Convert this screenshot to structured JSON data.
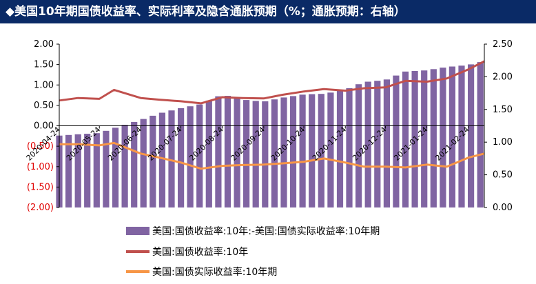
{
  "header": {
    "title": "◆美国10年期国债收益率、实际利率及隐含通胀预期（%；通胀预期：右轴）"
  },
  "colors": {
    "header_bg": "#0a2a66",
    "bar": "#8064a2",
    "nominal": "#c0504d",
    "real": "#f79646",
    "negative_tick": "#e00000"
  },
  "chart_data": {
    "type": "bar+line",
    "left_axis": {
      "ylim": [
        -2.0,
        2.0
      ],
      "ticks": [
        "2.00",
        "1.50",
        "1.00",
        "0.50",
        "0.00",
        "(0.50)",
        "(1.00)",
        "(1.50)",
        "(2.00)"
      ]
    },
    "right_axis": {
      "ylim": [
        0.0,
        2.5
      ],
      "ticks": [
        "2.50",
        "2.00",
        "1.50",
        "1.00",
        "0.50",
        "0.00"
      ]
    },
    "x_ticks": [
      "2020-04-24",
      "2020-05-24",
      "2020-06-24",
      "2020-07-24",
      "2020-08-24",
      "2020-09-24",
      "2020-10-24",
      "2020-11-24",
      "2020-12-24",
      "2021-01-24",
      "2021-02-24"
    ],
    "x_range": [
      "2020-04-24",
      "2021-03-08"
    ],
    "legend": [
      {
        "label": "美国:国债收益率:10年:-美国:国债实际收益率:10年期",
        "kind": "bar"
      },
      {
        "label": "美国:国债收益率:10年",
        "kind": "line"
      },
      {
        "label": "美国:国债实际收益率:10年期",
        "kind": "line"
      }
    ],
    "series": [
      {
        "name": "美国:国债收益率:10年:-美国:国债实际收益率:10年期",
        "axis": "right",
        "kind": "bar",
        "points": [
          [
            "2020-04-24",
            1.1
          ],
          [
            "2020-05-08",
            1.12
          ],
          [
            "2020-05-24",
            1.14
          ],
          [
            "2020-06-08",
            1.24
          ],
          [
            "2020-06-24",
            1.34
          ],
          [
            "2020-07-08",
            1.44
          ],
          [
            "2020-07-24",
            1.52
          ],
          [
            "2020-08-08",
            1.58
          ],
          [
            "2020-08-24",
            1.73
          ],
          [
            "2020-09-08",
            1.65
          ],
          [
            "2020-09-24",
            1.62
          ],
          [
            "2020-10-08",
            1.68
          ],
          [
            "2020-10-24",
            1.73
          ],
          [
            "2020-11-08",
            1.74
          ],
          [
            "2020-11-24",
            1.8
          ],
          [
            "2020-12-08",
            1.92
          ],
          [
            "2020-12-24",
            1.95
          ],
          [
            "2021-01-08",
            2.08
          ],
          [
            "2021-01-24",
            2.1
          ],
          [
            "2021-02-08",
            2.15
          ],
          [
            "2021-02-24",
            2.18
          ],
          [
            "2021-03-08",
            2.24
          ]
        ]
      },
      {
        "name": "美国:国债收益率:10年",
        "axis": "left",
        "kind": "line",
        "points": [
          [
            "2020-04-24",
            0.62
          ],
          [
            "2020-05-08",
            0.68
          ],
          [
            "2020-05-24",
            0.66
          ],
          [
            "2020-06-04",
            0.88
          ],
          [
            "2020-06-24",
            0.68
          ],
          [
            "2020-07-08",
            0.64
          ],
          [
            "2020-07-24",
            0.6
          ],
          [
            "2020-08-08",
            0.55
          ],
          [
            "2020-08-24",
            0.7
          ],
          [
            "2020-09-08",
            0.68
          ],
          [
            "2020-09-24",
            0.67
          ],
          [
            "2020-10-08",
            0.76
          ],
          [
            "2020-10-24",
            0.84
          ],
          [
            "2020-11-08",
            0.9
          ],
          [
            "2020-11-24",
            0.86
          ],
          [
            "2020-12-08",
            0.92
          ],
          [
            "2020-12-24",
            0.94
          ],
          [
            "2021-01-08",
            1.1
          ],
          [
            "2021-01-24",
            1.08
          ],
          [
            "2021-02-08",
            1.16
          ],
          [
            "2021-02-24",
            1.38
          ],
          [
            "2021-03-08",
            1.58
          ]
        ]
      },
      {
        "name": "美国:国债实际收益率:10年期",
        "axis": "left",
        "kind": "line",
        "points": [
          [
            "2020-04-24",
            -0.45
          ],
          [
            "2020-05-08",
            -0.45
          ],
          [
            "2020-05-24",
            -0.48
          ],
          [
            "2020-06-04",
            -0.42
          ],
          [
            "2020-06-24",
            -0.68
          ],
          [
            "2020-07-08",
            -0.78
          ],
          [
            "2020-07-24",
            -0.9
          ],
          [
            "2020-08-08",
            -1.05
          ],
          [
            "2020-08-24",
            -0.98
          ],
          [
            "2020-09-08",
            -0.96
          ],
          [
            "2020-09-24",
            -0.95
          ],
          [
            "2020-10-08",
            -0.92
          ],
          [
            "2020-10-24",
            -0.88
          ],
          [
            "2020-11-08",
            -0.8
          ],
          [
            "2020-11-24",
            -0.9
          ],
          [
            "2020-12-08",
            -1.0
          ],
          [
            "2020-12-24",
            -1.0
          ],
          [
            "2021-01-08",
            -1.02
          ],
          [
            "2021-01-24",
            -0.95
          ],
          [
            "2021-02-08",
            -1.0
          ],
          [
            "2021-02-24",
            -0.78
          ],
          [
            "2021-03-08",
            -0.68
          ]
        ]
      }
    ]
  }
}
